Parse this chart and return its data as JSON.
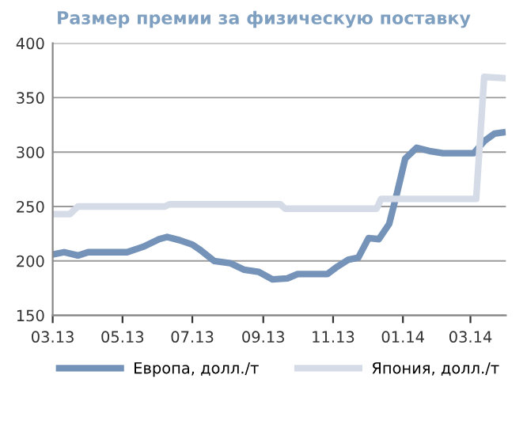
{
  "chart_data": {
    "type": "line",
    "title": "Размер премии за физическую поставку",
    "xlim": [
      "2013-03-01",
      "2014-04-01"
    ],
    "xticks": [
      {
        "value": "2013-03-01",
        "label": "03.13"
      },
      {
        "value": "2013-05-01",
        "label": "05.13"
      },
      {
        "value": "2013-07-01",
        "label": "07.13"
      },
      {
        "value": "2013-09-01",
        "label": "09.13"
      },
      {
        "value": "2013-11-01",
        "label": "11.13"
      },
      {
        "value": "2014-01-01",
        "label": "01.14"
      },
      {
        "value": "2014-03-01",
        "label": "03.14"
      }
    ],
    "ylim": [
      150,
      400
    ],
    "yticks": [
      150,
      200,
      250,
      300,
      350,
      400
    ],
    "grid": "y",
    "legend": "bottom",
    "marker": "none",
    "line_style": "solid",
    "series": [
      {
        "name": "Европа, долл./т",
        "color": "#7593b8",
        "x": [
          "2013-03-01",
          "2013-03-11",
          "2013-03-23",
          "2013-04-01",
          "2013-05-05",
          "2013-05-19",
          "2013-06-02",
          "2013-06-09",
          "2013-06-20",
          "2013-07-01",
          "2013-07-08",
          "2013-07-20",
          "2013-08-03",
          "2013-08-15",
          "2013-08-28",
          "2013-09-09",
          "2013-09-22",
          "2013-10-01",
          "2013-10-27",
          "2013-11-05",
          "2013-11-14",
          "2013-11-23",
          "2013-12-02",
          "2013-12-11",
          "2013-12-20",
          "2013-12-27",
          "2014-01-03",
          "2014-01-13",
          "2014-01-24",
          "2014-02-05",
          "2014-03-04",
          "2014-03-13",
          "2014-03-22",
          "2014-03-29"
        ],
        "values": [
          206,
          208,
          205,
          208,
          208,
          213,
          220,
          222,
          219,
          215,
          210,
          200,
          198,
          192,
          190,
          183,
          184,
          188,
          188,
          195,
          201,
          203,
          221,
          220,
          234,
          263,
          294,
          304,
          301,
          299,
          299,
          310,
          317,
          318
        ]
      },
      {
        "name": "Япония, долл./т",
        "color": "#d5dce7",
        "x": [
          "2013-03-01",
          "2013-03-16",
          "2013-03-23",
          "2013-06-07",
          "2013-06-11",
          "2013-09-16",
          "2013-09-20",
          "2013-12-09",
          "2013-12-13",
          "2014-03-06",
          "2014-03-13",
          "2014-03-29"
        ],
        "values": [
          243,
          243,
          250,
          250,
          252,
          252,
          248,
          248,
          257,
          257,
          369,
          368
        ]
      }
    ]
  }
}
